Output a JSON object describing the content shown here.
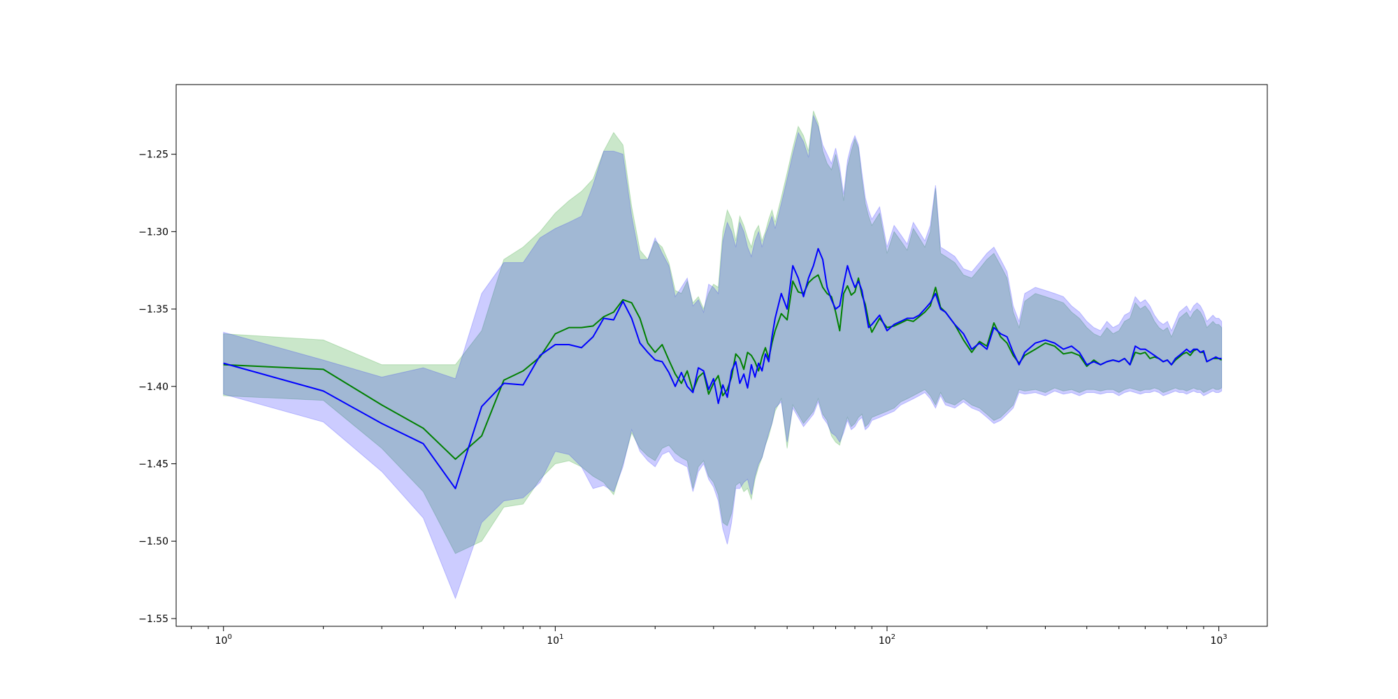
{
  "chart_data": {
    "type": "line",
    "xscale": "log",
    "xlim": [
      0.72,
      1400
    ],
    "ylim": [
      -1.555,
      -1.205
    ],
    "grid": false,
    "title": "",
    "xlabel": "",
    "ylabel": "",
    "x_ticks": [
      {
        "value": 1,
        "base": "10",
        "exp": "0"
      },
      {
        "value": 10,
        "base": "10",
        "exp": "1"
      },
      {
        "value": 100,
        "base": "10",
        "exp": "2"
      },
      {
        "value": 1000,
        "base": "10",
        "exp": "3"
      }
    ],
    "y_ticks": [
      {
        "value": -1.25,
        "label": "−1.25"
      },
      {
        "value": -1.3,
        "label": "−1.30"
      },
      {
        "value": -1.35,
        "label": "−1.35"
      },
      {
        "value": -1.4,
        "label": "−1.40"
      },
      {
        "value": -1.45,
        "label": "−1.45"
      },
      {
        "value": -1.5,
        "label": "−1.50"
      },
      {
        "value": -1.55,
        "label": "−1.55"
      }
    ],
    "series": [
      {
        "color": "#008000",
        "band_color": "#2ca02c",
        "band_opacity": 0.25,
        "x": [
          1,
          2,
          3,
          4,
          5,
          6,
          7,
          8,
          9,
          10,
          11,
          12,
          13,
          14,
          15,
          16,
          17,
          18,
          19,
          20,
          21,
          22,
          23,
          24,
          25,
          26,
          27,
          28,
          29,
          30,
          31,
          32,
          33,
          34,
          35,
          36,
          37,
          38,
          39,
          40,
          41,
          42,
          43,
          44,
          45,
          46,
          48,
          50,
          52,
          54,
          56,
          58,
          60,
          62,
          64,
          66,
          68,
          70,
          72,
          74,
          76,
          78,
          80,
          82,
          84,
          86,
          88,
          90,
          95,
          100,
          105,
          110,
          115,
          120,
          125,
          130,
          135,
          140,
          145,
          150,
          160,
          170,
          180,
          190,
          200,
          210,
          220,
          230,
          240,
          250,
          260,
          280,
          300,
          320,
          340,
          360,
          380,
          400,
          420,
          440,
          460,
          480,
          500,
          520,
          540,
          560,
          580,
          600,
          620,
          640,
          660,
          680,
          700,
          720,
          740,
          760,
          780,
          800,
          820,
          840,
          860,
          880,
          900,
          920,
          940,
          960,
          980,
          1000,
          1020
        ],
        "y": [
          -1.386,
          -1.389,
          -1.412,
          -1.427,
          -1.447,
          -1.432,
          -1.396,
          -1.39,
          -1.381,
          -1.366,
          -1.362,
          -1.362,
          -1.361,
          -1.355,
          -1.352,
          -1.344,
          -1.346,
          -1.356,
          -1.372,
          -1.378,
          -1.373,
          -1.383,
          -1.392,
          -1.398,
          -1.39,
          -1.403,
          -1.394,
          -1.391,
          -1.405,
          -1.398,
          -1.393,
          -1.406,
          -1.402,
          -1.394,
          -1.379,
          -1.382,
          -1.389,
          -1.378,
          -1.38,
          -1.384,
          -1.39,
          -1.381,
          -1.375,
          -1.382,
          -1.372,
          -1.364,
          -1.353,
          -1.357,
          -1.332,
          -1.339,
          -1.34,
          -1.333,
          -1.33,
          -1.328,
          -1.336,
          -1.34,
          -1.342,
          -1.352,
          -1.364,
          -1.34,
          -1.335,
          -1.341,
          -1.339,
          -1.33,
          -1.341,
          -1.347,
          -1.358,
          -1.365,
          -1.356,
          -1.362,
          -1.361,
          -1.359,
          -1.357,
          -1.358,
          -1.355,
          -1.352,
          -1.348,
          -1.336,
          -1.349,
          -1.352,
          -1.36,
          -1.37,
          -1.378,
          -1.371,
          -1.374,
          -1.359,
          -1.368,
          -1.372,
          -1.38,
          -1.385,
          -1.38,
          -1.376,
          -1.372,
          -1.374,
          -1.379,
          -1.378,
          -1.38,
          -1.387,
          -1.383,
          -1.386,
          -1.384,
          -1.383,
          -1.384,
          -1.382,
          -1.386,
          -1.378,
          -1.379,
          -1.378,
          -1.382,
          -1.381,
          -1.382,
          -1.384,
          -1.383,
          -1.386,
          -1.383,
          -1.381,
          -1.379,
          -1.378,
          -1.38,
          -1.377,
          -1.376,
          -1.378,
          -1.378,
          -1.384,
          -1.383,
          -1.382,
          -1.382,
          -1.382,
          -1.383
        ],
        "lo": [
          -1.406,
          -1.409,
          -1.44,
          -1.468,
          -1.508,
          -1.5,
          -1.478,
          -1.476,
          -1.46,
          -1.45,
          -1.448,
          -1.452,
          -1.458,
          -1.462,
          -1.47,
          -1.45,
          -1.43,
          -1.44,
          -1.445,
          -1.448,
          -1.44,
          -1.438,
          -1.443,
          -1.446,
          -1.448,
          -1.466,
          -1.452,
          -1.448,
          -1.458,
          -1.462,
          -1.47,
          -1.488,
          -1.49,
          -1.482,
          -1.464,
          -1.462,
          -1.468,
          -1.466,
          -1.473,
          -1.46,
          -1.452,
          -1.446,
          -1.438,
          -1.432,
          -1.424,
          -1.416,
          -1.408,
          -1.44,
          -1.412,
          -1.418,
          -1.424,
          -1.42,
          -1.416,
          -1.408,
          -1.418,
          -1.422,
          -1.432,
          -1.436,
          -1.438,
          -1.428,
          -1.42,
          -1.426,
          -1.424,
          -1.42,
          -1.418,
          -1.426,
          -1.424,
          -1.42,
          -1.418,
          -1.416,
          -1.414,
          -1.41,
          -1.408,
          -1.406,
          -1.404,
          -1.402,
          -1.406,
          -1.412,
          -1.404,
          -1.41,
          -1.412,
          -1.408,
          -1.412,
          -1.414,
          -1.418,
          -1.422,
          -1.42,
          -1.416,
          -1.412,
          -1.402,
          -1.403,
          -1.402,
          -1.404,
          -1.401,
          -1.403,
          -1.402,
          -1.404,
          -1.402,
          -1.402,
          -1.403,
          -1.402,
          -1.402,
          -1.404,
          -1.402,
          -1.401,
          -1.402,
          -1.403,
          -1.402,
          -1.402,
          -1.401,
          -1.402,
          -1.404,
          -1.403,
          -1.402,
          -1.401,
          -1.402,
          -1.402,
          -1.403,
          -1.402,
          -1.401,
          -1.402,
          -1.402,
          -1.404,
          -1.403,
          -1.402,
          -1.401,
          -1.402,
          -1.402,
          -1.401
        ],
        "hi": [
          -1.366,
          -1.37,
          -1.386,
          -1.386,
          -1.386,
          -1.364,
          -1.318,
          -1.31,
          -1.3,
          -1.288,
          -1.28,
          -1.274,
          -1.266,
          -1.248,
          -1.236,
          -1.244,
          -1.284,
          -1.312,
          -1.318,
          -1.306,
          -1.31,
          -1.32,
          -1.338,
          -1.34,
          -1.332,
          -1.346,
          -1.342,
          -1.35,
          -1.34,
          -1.334,
          -1.336,
          -1.3,
          -1.286,
          -1.292,
          -1.306,
          -1.29,
          -1.296,
          -1.304,
          -1.31,
          -1.3,
          -1.296,
          -1.306,
          -1.3,
          -1.292,
          -1.286,
          -1.294,
          -1.278,
          -1.262,
          -1.246,
          -1.232,
          -1.238,
          -1.248,
          -1.222,
          -1.23,
          -1.248,
          -1.256,
          -1.26,
          -1.25,
          -1.262,
          -1.28,
          -1.258,
          -1.248,
          -1.24,
          -1.246,
          -1.266,
          -1.282,
          -1.29,
          -1.296,
          -1.288,
          -1.314,
          -1.3,
          -1.306,
          -1.312,
          -1.298,
          -1.304,
          -1.31,
          -1.3,
          -1.272,
          -1.314,
          -1.316,
          -1.32,
          -1.328,
          -1.33,
          -1.324,
          -1.318,
          -1.314,
          -1.322,
          -1.33,
          -1.352,
          -1.362,
          -1.345,
          -1.34,
          -1.342,
          -1.344,
          -1.346,
          -1.352,
          -1.356,
          -1.362,
          -1.366,
          -1.368,
          -1.362,
          -1.366,
          -1.364,
          -1.358,
          -1.356,
          -1.346,
          -1.35,
          -1.348,
          -1.352,
          -1.358,
          -1.362,
          -1.364,
          -1.362,
          -1.368,
          -1.362,
          -1.356,
          -1.354,
          -1.352,
          -1.356,
          -1.352,
          -1.35,
          -1.352,
          -1.356,
          -1.362,
          -1.36,
          -1.358,
          -1.36,
          -1.36,
          -1.362
        ]
      },
      {
        "color": "#0000ff",
        "band_color": "#0000ff",
        "band_opacity": 0.2,
        "x": [
          1,
          2,
          3,
          4,
          5,
          6,
          7,
          8,
          9,
          10,
          11,
          12,
          13,
          14,
          15,
          16,
          17,
          18,
          19,
          20,
          21,
          22,
          23,
          24,
          25,
          26,
          27,
          28,
          29,
          30,
          31,
          32,
          33,
          34,
          35,
          36,
          37,
          38,
          39,
          40,
          41,
          42,
          43,
          44,
          45,
          46,
          48,
          50,
          52,
          54,
          56,
          58,
          60,
          62,
          64,
          66,
          68,
          70,
          72,
          74,
          76,
          78,
          80,
          82,
          84,
          86,
          88,
          90,
          95,
          100,
          105,
          110,
          115,
          120,
          125,
          130,
          135,
          140,
          145,
          150,
          160,
          170,
          180,
          190,
          200,
          210,
          220,
          230,
          240,
          250,
          260,
          280,
          300,
          320,
          340,
          360,
          380,
          400,
          420,
          440,
          460,
          480,
          500,
          520,
          540,
          560,
          580,
          600,
          620,
          640,
          660,
          680,
          700,
          720,
          740,
          760,
          780,
          800,
          820,
          840,
          860,
          880,
          900,
          920,
          940,
          960,
          980,
          1000,
          1020
        ],
        "y": [
          -1.385,
          -1.403,
          -1.424,
          -1.437,
          -1.466,
          -1.413,
          -1.398,
          -1.399,
          -1.38,
          -1.373,
          -1.373,
          -1.375,
          -1.368,
          -1.356,
          -1.357,
          -1.345,
          -1.356,
          -1.372,
          -1.378,
          -1.383,
          -1.384,
          -1.391,
          -1.4,
          -1.391,
          -1.4,
          -1.404,
          -1.388,
          -1.39,
          -1.402,
          -1.395,
          -1.411,
          -1.399,
          -1.407,
          -1.39,
          -1.384,
          -1.398,
          -1.392,
          -1.401,
          -1.386,
          -1.394,
          -1.385,
          -1.39,
          -1.379,
          -1.384,
          -1.368,
          -1.356,
          -1.34,
          -1.35,
          -1.322,
          -1.33,
          -1.342,
          -1.33,
          -1.322,
          -1.311,
          -1.318,
          -1.336,
          -1.344,
          -1.35,
          -1.348,
          -1.334,
          -1.322,
          -1.33,
          -1.336,
          -1.332,
          -1.338,
          -1.35,
          -1.362,
          -1.36,
          -1.354,
          -1.364,
          -1.36,
          -1.358,
          -1.356,
          -1.356,
          -1.354,
          -1.35,
          -1.346,
          -1.34,
          -1.35,
          -1.352,
          -1.36,
          -1.366,
          -1.376,
          -1.372,
          -1.376,
          -1.362,
          -1.366,
          -1.368,
          -1.378,
          -1.386,
          -1.378,
          -1.372,
          -1.37,
          -1.372,
          -1.376,
          -1.374,
          -1.378,
          -1.386,
          -1.384,
          -1.386,
          -1.384,
          -1.383,
          -1.384,
          -1.382,
          -1.386,
          -1.374,
          -1.376,
          -1.376,
          -1.378,
          -1.38,
          -1.382,
          -1.384,
          -1.383,
          -1.386,
          -1.382,
          -1.38,
          -1.378,
          -1.376,
          -1.378,
          -1.376,
          -1.376,
          -1.378,
          -1.377,
          -1.384,
          -1.383,
          -1.382,
          -1.381,
          -1.382,
          -1.382
        ],
        "lo": [
          -1.405,
          -1.423,
          -1.455,
          -1.485,
          -1.537,
          -1.488,
          -1.474,
          -1.472,
          -1.462,
          -1.442,
          -1.444,
          -1.452,
          -1.466,
          -1.464,
          -1.468,
          -1.452,
          -1.428,
          -1.442,
          -1.448,
          -1.452,
          -1.444,
          -1.442,
          -1.448,
          -1.45,
          -1.452,
          -1.468,
          -1.455,
          -1.45,
          -1.46,
          -1.465,
          -1.474,
          -1.492,
          -1.502,
          -1.488,
          -1.466,
          -1.466,
          -1.462,
          -1.46,
          -1.47,
          -1.458,
          -1.45,
          -1.446,
          -1.438,
          -1.43,
          -1.424,
          -1.414,
          -1.41,
          -1.436,
          -1.414,
          -1.42,
          -1.426,
          -1.422,
          -1.418,
          -1.41,
          -1.42,
          -1.424,
          -1.43,
          -1.432,
          -1.436,
          -1.43,
          -1.422,
          -1.428,
          -1.426,
          -1.422,
          -1.42,
          -1.428,
          -1.426,
          -1.422,
          -1.42,
          -1.418,
          -1.416,
          -1.412,
          -1.41,
          -1.408,
          -1.406,
          -1.404,
          -1.408,
          -1.414,
          -1.406,
          -1.412,
          -1.414,
          -1.41,
          -1.414,
          -1.416,
          -1.42,
          -1.424,
          -1.422,
          -1.418,
          -1.414,
          -1.404,
          -1.405,
          -1.404,
          -1.406,
          -1.403,
          -1.405,
          -1.404,
          -1.406,
          -1.404,
          -1.404,
          -1.405,
          -1.404,
          -1.404,
          -1.406,
          -1.404,
          -1.403,
          -1.404,
          -1.405,
          -1.404,
          -1.404,
          -1.403,
          -1.404,
          -1.406,
          -1.405,
          -1.404,
          -1.403,
          -1.404,
          -1.404,
          -1.405,
          -1.404,
          -1.403,
          -1.404,
          -1.404,
          -1.406,
          -1.405,
          -1.404,
          -1.403,
          -1.404,
          -1.404,
          -1.403
        ],
        "hi": [
          -1.365,
          -1.383,
          -1.394,
          -1.388,
          -1.395,
          -1.34,
          -1.32,
          -1.32,
          -1.304,
          -1.298,
          -1.294,
          -1.29,
          -1.27,
          -1.248,
          -1.248,
          -1.25,
          -1.29,
          -1.318,
          -1.318,
          -1.304,
          -1.314,
          -1.322,
          -1.342,
          -1.336,
          -1.33,
          -1.348,
          -1.344,
          -1.352,
          -1.334,
          -1.336,
          -1.34,
          -1.306,
          -1.294,
          -1.3,
          -1.31,
          -1.294,
          -1.3,
          -1.31,
          -1.316,
          -1.306,
          -1.3,
          -1.31,
          -1.302,
          -1.296,
          -1.29,
          -1.298,
          -1.282,
          -1.266,
          -1.25,
          -1.236,
          -1.242,
          -1.252,
          -1.225,
          -1.232,
          -1.244,
          -1.25,
          -1.256,
          -1.246,
          -1.258,
          -1.276,
          -1.254,
          -1.244,
          -1.238,
          -1.244,
          -1.262,
          -1.278,
          -1.286,
          -1.292,
          -1.284,
          -1.31,
          -1.296,
          -1.302,
          -1.308,
          -1.294,
          -1.3,
          -1.306,
          -1.296,
          -1.27,
          -1.31,
          -1.312,
          -1.316,
          -1.324,
          -1.326,
          -1.32,
          -1.314,
          -1.31,
          -1.318,
          -1.326,
          -1.348,
          -1.358,
          -1.34,
          -1.336,
          -1.338,
          -1.34,
          -1.342,
          -1.348,
          -1.352,
          -1.358,
          -1.362,
          -1.364,
          -1.358,
          -1.362,
          -1.36,
          -1.354,
          -1.352,
          -1.342,
          -1.346,
          -1.344,
          -1.348,
          -1.354,
          -1.358,
          -1.36,
          -1.358,
          -1.364,
          -1.358,
          -1.352,
          -1.35,
          -1.348,
          -1.352,
          -1.348,
          -1.346,
          -1.348,
          -1.352,
          -1.358,
          -1.356,
          -1.354,
          -1.356,
          -1.356,
          -1.358
        ]
      }
    ]
  }
}
